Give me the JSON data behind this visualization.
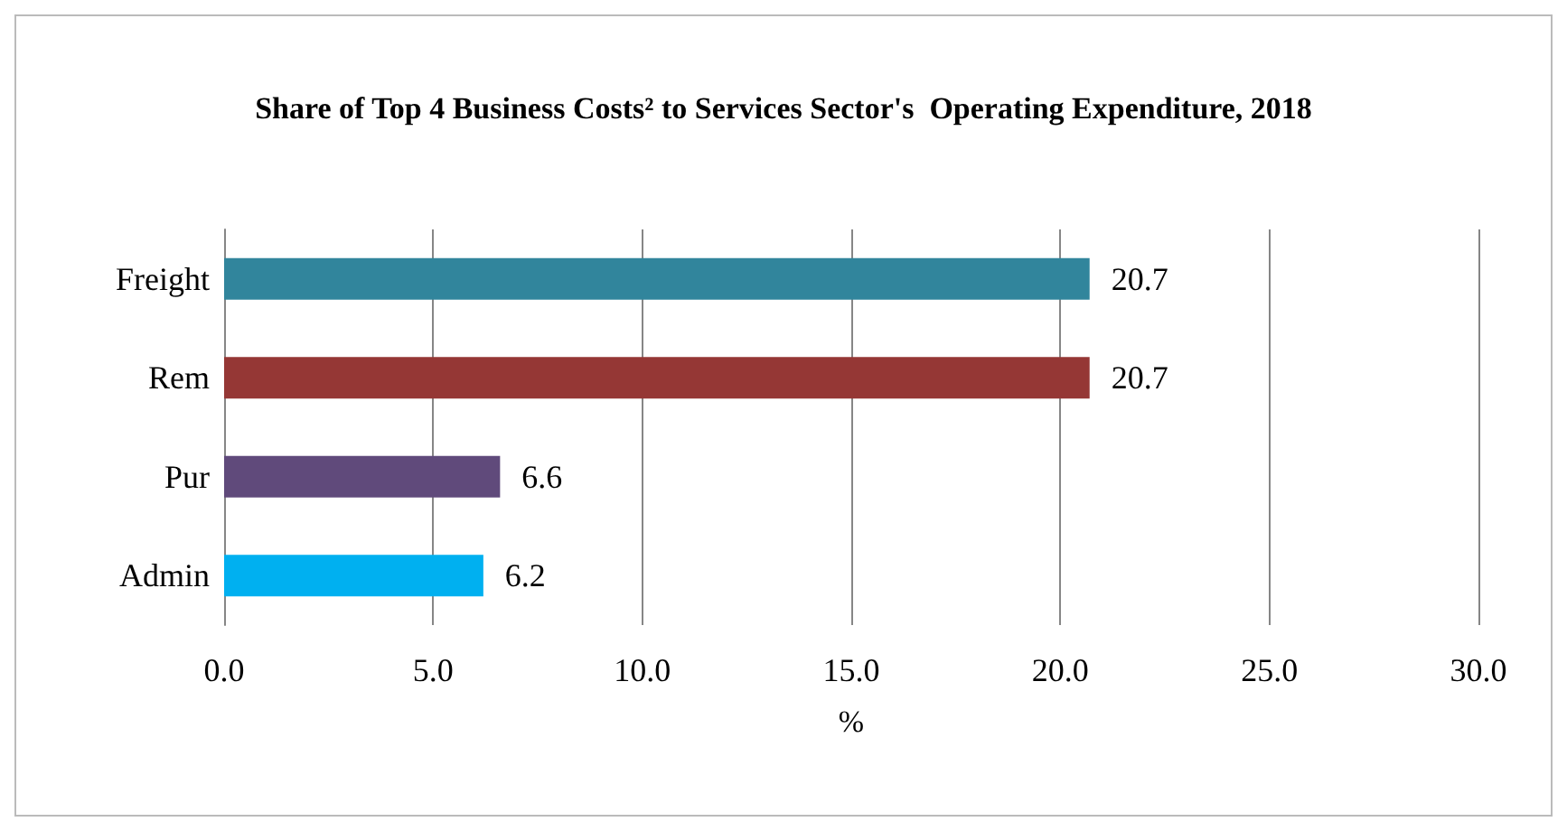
{
  "chart_data": {
    "type": "bar",
    "orientation": "horizontal",
    "title": "Share of Top 4 Business Costs² to Services Sector's  Operating Expenditure, 2018",
    "xlabel": "%",
    "categories": [
      "Freight",
      "Rem",
      "Pur",
      "Admin"
    ],
    "values": [
      20.7,
      20.7,
      6.6,
      6.2
    ],
    "colors": [
      "#31859c",
      "#953735",
      "#604a7b",
      "#00b0f0"
    ],
    "xlim": [
      0,
      30
    ],
    "xticks": [
      {
        "value": 0,
        "label": "0.0"
      },
      {
        "value": 5,
        "label": "5.0"
      },
      {
        "value": 10,
        "label": "10.0"
      },
      {
        "value": 15,
        "label": "15.0"
      },
      {
        "value": 20,
        "label": "20.0"
      },
      {
        "value": 25,
        "label": "25.0"
      },
      {
        "value": 30,
        "label": "30.0"
      }
    ],
    "grid": "x",
    "data_labels": true
  }
}
